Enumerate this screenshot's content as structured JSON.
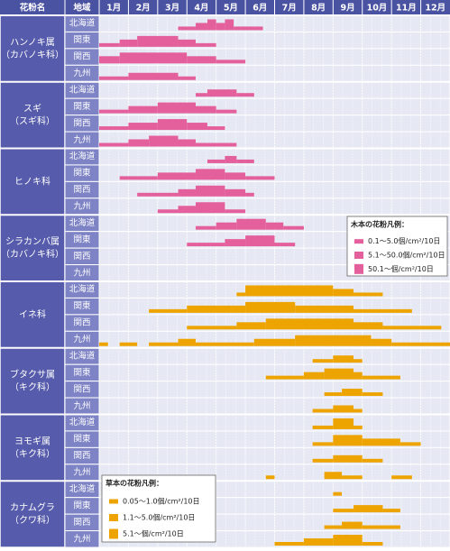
{
  "header": {
    "name": "花粉名",
    "region": "地域",
    "months": [
      "1月",
      "2月",
      "3月",
      "4月",
      "5月",
      "6月",
      "7月",
      "8月",
      "9月",
      "10月",
      "11月",
      "12月"
    ]
  },
  "groups": [
    {
      "name": [
        "ハンノキ属",
        "（カバノキ科）"
      ],
      "color": "#e4609c",
      "rows": [
        {
          "region": "北海道",
          "segments": [
            [
              2.7,
              3.3,
              1
            ],
            [
              3.3,
              3.7,
              2
            ],
            [
              3.7,
              4.0,
              3
            ],
            [
              4.0,
              4.3,
              2
            ],
            [
              4.3,
              4.6,
              3
            ],
            [
              4.6,
              5.6,
              1
            ]
          ]
        },
        {
          "region": "関東",
          "segments": [
            [
              0,
              0.7,
              1
            ],
            [
              0.7,
              1.3,
              2
            ],
            [
              1.3,
              2.7,
              3
            ],
            [
              2.7,
              3.3,
              2
            ],
            [
              3.3,
              4.0,
              1
            ]
          ]
        },
        {
          "region": "関西",
          "segments": [
            [
              0,
              0.7,
              2
            ],
            [
              0.7,
              3.0,
              3
            ],
            [
              3.0,
              4.0,
              2
            ],
            [
              4.0,
              5.0,
              1
            ]
          ]
        },
        {
          "region": "九州",
          "segments": [
            [
              0,
              1.0,
              1
            ],
            [
              1.0,
              2.7,
              2
            ],
            [
              2.7,
              3.3,
              1
            ]
          ]
        }
      ]
    },
    {
      "name": [
        "スギ",
        "（スギ科）"
      ],
      "color": "#e4609c",
      "rows": [
        {
          "region": "北海道",
          "segments": [
            [
              3.3,
              3.7,
              1
            ],
            [
              3.7,
              4.7,
              2
            ],
            [
              4.7,
              5.3,
              1
            ]
          ]
        },
        {
          "region": "関東",
          "segments": [
            [
              0,
              1.0,
              1
            ],
            [
              1.0,
              2.0,
              2
            ],
            [
              2.0,
              3.3,
              3
            ],
            [
              3.3,
              4.0,
              2
            ],
            [
              4.0,
              4.7,
              1
            ]
          ]
        },
        {
          "region": "関西",
          "segments": [
            [
              0,
              1.0,
              1
            ],
            [
              1.0,
              2.0,
              2
            ],
            [
              2.0,
              3.0,
              3
            ],
            [
              3.0,
              3.7,
              2
            ],
            [
              3.7,
              4.3,
              1
            ]
          ]
        },
        {
          "region": "九州",
          "segments": [
            [
              0,
              1.0,
              1
            ],
            [
              1.0,
              1.7,
              2
            ],
            [
              1.7,
              2.7,
              3
            ],
            [
              2.7,
              3.3,
              2
            ],
            [
              3.3,
              4.7,
              1
            ]
          ]
        }
      ]
    },
    {
      "name": [
        "ヒノキ科"
      ],
      "color": "#e4609c",
      "rows": [
        {
          "region": "北海道",
          "segments": [
            [
              3.7,
              4.3,
              1
            ],
            [
              4.3,
              4.7,
              2
            ],
            [
              4.7,
              5.3,
              1
            ]
          ]
        },
        {
          "region": "関東",
          "segments": [
            [
              0.7,
              2.0,
              1
            ],
            [
              2.0,
              3.3,
              2
            ],
            [
              3.3,
              4.3,
              3
            ],
            [
              4.3,
              5.0,
              2
            ],
            [
              5.0,
              6.0,
              1
            ]
          ]
        },
        {
          "region": "関西",
          "segments": [
            [
              1.3,
              2.7,
              1
            ],
            [
              2.7,
              3.3,
              2
            ],
            [
              3.3,
              4.3,
              3
            ],
            [
              4.3,
              5.0,
              2
            ],
            [
              5.0,
              5.3,
              1
            ]
          ]
        },
        {
          "region": "九州",
          "segments": [
            [
              2.0,
              2.7,
              1
            ],
            [
              2.7,
              3.3,
              2
            ],
            [
              3.3,
              4.3,
              3
            ],
            [
              4.3,
              5.0,
              1
            ]
          ]
        }
      ]
    },
    {
      "name": [
        "シラカンバ属",
        "（カバノキ科）"
      ],
      "color": "#e4609c",
      "rows": [
        {
          "region": "北海道",
          "segments": [
            [
              3.3,
              4.0,
              1
            ],
            [
              4.0,
              4.7,
              2
            ],
            [
              4.7,
              5.7,
              3
            ],
            [
              5.7,
              6.3,
              2
            ],
            [
              6.3,
              7.0,
              1
            ]
          ]
        },
        {
          "region": "関東",
          "segments": [
            [
              3.0,
              4.3,
              1
            ],
            [
              4.3,
              5.0,
              2
            ],
            [
              5.0,
              6.0,
              3
            ],
            [
              6.0,
              6.7,
              1
            ]
          ]
        },
        {
          "region": "関西",
          "segments": []
        },
        {
          "region": "九州",
          "segments": []
        }
      ]
    },
    {
      "name": [
        "イネ科"
      ],
      "color": "#eea400",
      "rows": [
        {
          "region": "北海道",
          "segments": [
            [
              4.7,
              5.0,
              1
            ],
            [
              5.0,
              8.0,
              3
            ],
            [
              8.0,
              8.7,
              2
            ],
            [
              8.7,
              9.7,
              1
            ]
          ]
        },
        {
          "region": "関東",
          "segments": [
            [
              1.7,
              3.0,
              1
            ],
            [
              3.0,
              5.0,
              2
            ],
            [
              5.0,
              6.7,
              3
            ],
            [
              6.7,
              8.7,
              2
            ],
            [
              8.7,
              10.7,
              1
            ]
          ]
        },
        {
          "region": "関西",
          "segments": [
            [
              3.0,
              4.7,
              1
            ],
            [
              4.7,
              5.7,
              2
            ],
            [
              5.7,
              8.7,
              3
            ],
            [
              8.7,
              9.7,
              2
            ],
            [
              9.7,
              11.7,
              1
            ]
          ]
        },
        {
          "region": "九州",
          "segments": [
            [
              0,
              0.3,
              1
            ],
            [
              0.7,
              1.3,
              1
            ],
            [
              1.7,
              2.7,
              1
            ],
            [
              2.7,
              3.3,
              2
            ],
            [
              3.3,
              5.3,
              1
            ],
            [
              5.3,
              6.7,
              2
            ],
            [
              6.7,
              9.3,
              3
            ],
            [
              9.3,
              10.0,
              2
            ],
            [
              10.0,
              12.0,
              1
            ]
          ]
        }
      ]
    },
    {
      "name": [
        "ブタクサ属",
        "（キク科）"
      ],
      "color": "#eea400",
      "rows": [
        {
          "region": "北海道",
          "segments": [
            [
              7.3,
              8.0,
              1
            ],
            [
              8.0,
              8.7,
              2
            ],
            [
              8.7,
              9.0,
              1
            ]
          ]
        },
        {
          "region": "関東",
          "segments": [
            [
              5.7,
              7.0,
              1
            ],
            [
              7.0,
              7.7,
              2
            ],
            [
              7.7,
              8.7,
              3
            ],
            [
              8.7,
              9.0,
              2
            ],
            [
              9.0,
              10.3,
              1
            ]
          ]
        },
        {
          "region": "関西",
          "segments": [
            [
              7.7,
              8.3,
              1
            ],
            [
              8.3,
              9.0,
              2
            ],
            [
              9.0,
              9.7,
              1
            ]
          ]
        },
        {
          "region": "九州",
          "segments": [
            [
              7.3,
              8.0,
              1
            ],
            [
              8.0,
              8.7,
              2
            ],
            [
              8.7,
              9.0,
              1
            ]
          ]
        }
      ]
    },
    {
      "name": [
        "ヨモギ属",
        "（キク科）"
      ],
      "color": "#eea400",
      "rows": [
        {
          "region": "北海道",
          "segments": [
            [
              7.3,
              8.0,
              1
            ],
            [
              8.0,
              8.7,
              3
            ],
            [
              8.7,
              9.0,
              1
            ]
          ]
        },
        {
          "region": "関東",
          "segments": [
            [
              7.3,
              8.0,
              1
            ],
            [
              8.0,
              9.0,
              3
            ],
            [
              9.0,
              10.3,
              2
            ],
            [
              10.3,
              11.0,
              1
            ]
          ]
        },
        {
          "region": "関西",
          "segments": [
            [
              7.3,
              8.0,
              1
            ],
            [
              8.0,
              9.0,
              2
            ],
            [
              9.0,
              9.7,
              1
            ]
          ]
        },
        {
          "region": "九州",
          "segments": [
            [
              5.7,
              6.0,
              1
            ],
            [
              7.7,
              8.3,
              2
            ],
            [
              8.3,
              9.0,
              1
            ],
            [
              10.0,
              10.7,
              1
            ]
          ]
        }
      ]
    },
    {
      "name": [
        "カナムグラ",
        "（クワ科）"
      ],
      "color": "#eea400",
      "rows": [
        {
          "region": "北海道",
          "segments": [
            [
              8.0,
              8.3,
              1
            ]
          ]
        },
        {
          "region": "関東",
          "segments": [
            [
              8.0,
              8.7,
              1
            ],
            [
              8.7,
              9.7,
              2
            ],
            [
              9.7,
              10.3,
              1
            ]
          ]
        },
        {
          "region": "関西",
          "segments": [
            [
              7.7,
              8.3,
              1
            ],
            [
              8.3,
              9.0,
              2
            ],
            [
              9.0,
              10.3,
              1
            ]
          ]
        },
        {
          "region": "九州",
          "segments": [
            [
              6.0,
              7.0,
              1
            ],
            [
              7.0,
              8.0,
              2
            ],
            [
              8.0,
              9.0,
              3
            ],
            [
              9.0,
              9.7,
              1
            ]
          ]
        }
      ]
    }
  ],
  "legends": [
    {
      "title": "木本の花粉凡例：",
      "color": "#e4609c",
      "items": [
        "0.1～5.0個/cm²/10日",
        "5.1～50.0個/cm²/10日",
        "50.1～個/cm²/10日"
      ]
    },
    {
      "title": "草本の花粉凡例：",
      "color": "#eea400",
      "items": [
        "0.05～1.0個/cm²/10日",
        "1.1～5.0個/cm²/10日",
        "5.1～個/cm²/10日"
      ]
    }
  ]
}
